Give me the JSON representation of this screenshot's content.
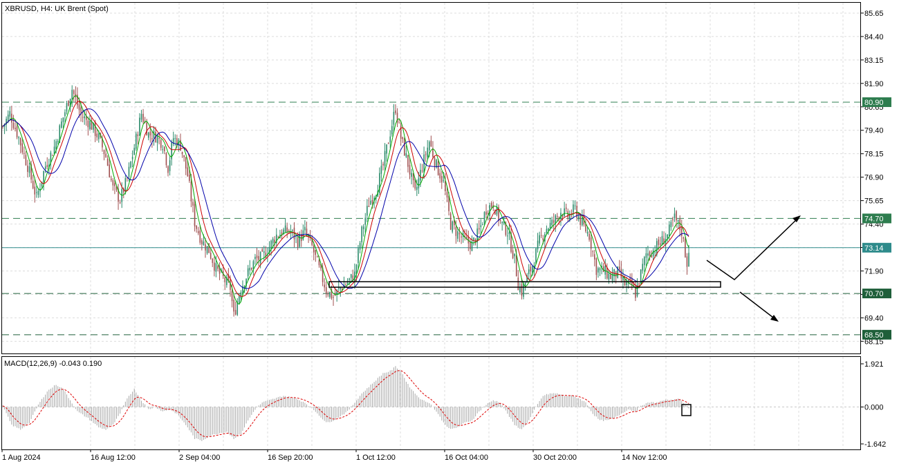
{
  "chart_data": [
    {
      "type": "candlestick",
      "title": "XBRUSD, H4:  UK Brent (Spot)",
      "ylim": [
        67.5,
        86.2
      ],
      "y_ticks": [
        "85.65",
        "84.40",
        "83.15",
        "81.90",
        "80.65",
        "79.40",
        "78.15",
        "76.90",
        "75.65",
        "74.40",
        "73.15",
        "71.90",
        "70.65",
        "69.40",
        "68.15"
      ],
      "x_ticks": [
        "1 Aug 2024",
        "16 Aug 12:00",
        "2 Sep 04:00",
        "16 Sep 20:00",
        "1 Oct 12:00",
        "16 Oct 04:00",
        "30 Oct 20:00",
        "14 Nov 12:00"
      ],
      "current_price": {
        "label": "73.14",
        "value": 73.14,
        "color": "#2e8b8b"
      },
      "levels": [
        {
          "label": "80.90",
          "value": 80.9,
          "color": "#2e7d4f"
        },
        {
          "label": "74.70",
          "value": 74.7,
          "color": "#2e7d4f"
        },
        {
          "label": "70.70",
          "value": 70.7,
          "color": "#1f5f3a"
        },
        {
          "label": "68.50",
          "value": 68.5,
          "color": "#1f5f3a"
        }
      ],
      "moving_averages": [
        {
          "color": "#00aa00"
        },
        {
          "color": "#cc0000"
        },
        {
          "color": "#0000aa"
        }
      ],
      "candle_colors": {
        "up": "#2a8a6a",
        "down": "#a05050"
      },
      "price_path": [
        [
          0,
          79.6
        ],
        [
          4,
          80.3
        ],
        [
          9,
          79.0
        ],
        [
          14,
          77.5
        ],
        [
          19,
          75.8
        ],
        [
          24,
          77.5
        ],
        [
          29,
          78.5
        ],
        [
          34,
          80.1
        ],
        [
          39,
          81.6
        ],
        [
          44,
          80.2
        ],
        [
          49,
          79.8
        ],
        [
          54,
          79.0
        ],
        [
          58,
          78.0
        ],
        [
          62,
          76.3
        ],
        [
          66,
          75.7
        ],
        [
          70,
          76.8
        ],
        [
          74,
          78.5
        ],
        [
          78,
          80.3
        ],
        [
          82,
          79.2
        ],
        [
          86,
          79.1
        ],
        [
          90,
          78.7
        ],
        [
          93,
          77.4
        ],
        [
          96,
          79.0
        ],
        [
          100,
          78.6
        ],
        [
          104,
          77.0
        ],
        [
          108,
          74.5
        ],
        [
          112,
          73.5
        ],
        [
          116,
          73.0
        ],
        [
          120,
          72.0
        ],
        [
          124,
          71.5
        ],
        [
          128,
          71.0
        ],
        [
          130,
          69.5
        ],
        [
          132,
          70.3
        ],
        [
          134,
          71.0
        ],
        [
          138,
          71.8
        ],
        [
          142,
          72.5
        ],
        [
          146,
          72.6
        ],
        [
          150,
          73.2
        ],
        [
          154,
          73.8
        ],
        [
          158,
          74.0
        ],
        [
          162,
          74.0
        ],
        [
          166,
          73.5
        ],
        [
          170,
          74.0
        ],
        [
          174,
          73.2
        ],
        [
          178,
          72.0
        ],
        [
          182,
          70.9
        ],
        [
          186,
          70.5
        ],
        [
          190,
          71.0
        ],
        [
          194,
          71.3
        ],
        [
          198,
          71.7
        ],
        [
          202,
          74.0
        ],
        [
          206,
          75.5
        ],
        [
          210,
          76.2
        ],
        [
          214,
          77.5
        ],
        [
          218,
          79.3
        ],
        [
          221,
          80.6
        ],
        [
          224,
          79.0
        ],
        [
          228,
          77.6
        ],
        [
          232,
          76.0
        ],
        [
          236,
          77.5
        ],
        [
          240,
          78.8
        ],
        [
          244,
          77.5
        ],
        [
          248,
          76.6
        ],
        [
          252,
          74.4
        ],
        [
          256,
          73.9
        ],
        [
          260,
          73.5
        ],
        [
          264,
          73.3
        ],
        [
          268,
          74.0
        ],
        [
          272,
          75.2
        ],
        [
          276,
          75.5
        ],
        [
          280,
          74.5
        ],
        [
          284,
          74.0
        ],
        [
          288,
          72.5
        ],
        [
          290,
          71.2
        ],
        [
          292,
          70.8
        ],
        [
          294,
          71.3
        ],
        [
          298,
          72.2
        ],
        [
          302,
          73.5
        ],
        [
          306,
          74.2
        ],
        [
          310,
          74.5
        ],
        [
          314,
          75.1
        ],
        [
          318,
          74.8
        ],
        [
          322,
          75.2
        ],
        [
          326,
          74.4
        ],
        [
          330,
          73.8
        ],
        [
          334,
          72.0
        ],
        [
          338,
          71.9
        ],
        [
          342,
          71.6
        ],
        [
          346,
          71.8
        ],
        [
          350,
          71.2
        ],
        [
          354,
          71.1
        ],
        [
          356,
          70.7
        ],
        [
          358,
          71.4
        ],
        [
          362,
          72.8
        ],
        [
          366,
          73.0
        ],
        [
          370,
          73.4
        ],
        [
          374,
          73.8
        ],
        [
          378,
          74.7
        ],
        [
          382,
          74.0
        ],
        [
          385,
          72.3
        ],
        [
          386,
          73.14
        ]
      ]
    },
    {
      "type": "histogram",
      "title": "MACD(12,26,9) -0.043 0.190",
      "ylim": [
        -1.642,
        1.921
      ],
      "y_ticks": [
        "1.921",
        "0.000",
        "-1.642"
      ],
      "histogram_color": "#a8a8a8",
      "signal_color": "#dd0000",
      "macd_path": [
        [
          0,
          0.05
        ],
        [
          5,
          -0.8
        ],
        [
          10,
          -1.0
        ],
        [
          15,
          -0.7
        ],
        [
          20,
          0.1
        ],
        [
          25,
          0.7
        ],
        [
          30,
          1.0
        ],
        [
          34,
          0.8
        ],
        [
          38,
          0.3
        ],
        [
          42,
          -0.2
        ],
        [
          48,
          -0.5
        ],
        [
          54,
          -0.9
        ],
        [
          58,
          -1.0
        ],
        [
          62,
          -0.8
        ],
        [
          66,
          -0.3
        ],
        [
          70,
          0.4
        ],
        [
          74,
          0.8
        ],
        [
          78,
          0.3
        ],
        [
          82,
          -0.1
        ],
        [
          86,
          0.0
        ],
        [
          90,
          -0.2
        ],
        [
          94,
          -0.1
        ],
        [
          98,
          -0.3
        ],
        [
          104,
          -0.9
        ],
        [
          108,
          -1.4
        ],
        [
          112,
          -1.5
        ],
        [
          116,
          -1.3
        ],
        [
          120,
          -1.2
        ],
        [
          126,
          -1.1
        ],
        [
          130,
          -1.4
        ],
        [
          134,
          -1.2
        ],
        [
          138,
          -0.6
        ],
        [
          142,
          -0.1
        ],
        [
          146,
          0.2
        ],
        [
          150,
          0.3
        ],
        [
          154,
          0.4
        ],
        [
          158,
          0.5
        ],
        [
          164,
          0.4
        ],
        [
          170,
          0.2
        ],
        [
          176,
          -0.2
        ],
        [
          182,
          -0.7
        ],
        [
          186,
          -0.6
        ],
        [
          190,
          -0.4
        ],
        [
          194,
          -0.2
        ],
        [
          198,
          0.2
        ],
        [
          202,
          0.6
        ],
        [
          206,
          0.9
        ],
        [
          210,
          1.2
        ],
        [
          214,
          1.5
        ],
        [
          218,
          1.6
        ],
        [
          221,
          1.8
        ],
        [
          224,
          1.6
        ],
        [
          228,
          1.0
        ],
        [
          232,
          0.6
        ],
        [
          236,
          0.3
        ],
        [
          240,
          0.2
        ],
        [
          244,
          -0.2
        ],
        [
          248,
          -0.7
        ],
        [
          252,
          -1.0
        ],
        [
          256,
          -0.9
        ],
        [
          260,
          -0.7
        ],
        [
          264,
          -0.6
        ],
        [
          268,
          -0.2
        ],
        [
          272,
          0.1
        ],
        [
          276,
          0.3
        ],
        [
          280,
          0.2
        ],
        [
          284,
          -0.3
        ],
        [
          288,
          -0.8
        ],
        [
          292,
          -1.0
        ],
        [
          296,
          -0.6
        ],
        [
          300,
          0.0
        ],
        [
          304,
          0.5
        ],
        [
          308,
          0.6
        ],
        [
          312,
          0.6
        ],
        [
          316,
          0.5
        ],
        [
          320,
          0.5
        ],
        [
          324,
          0.4
        ],
        [
          328,
          0.2
        ],
        [
          332,
          -0.3
        ],
        [
          336,
          -0.6
        ],
        [
          340,
          -0.6
        ],
        [
          344,
          -0.5
        ],
        [
          348,
          -0.3
        ],
        [
          352,
          -0.1
        ],
        [
          356,
          -0.2
        ],
        [
          360,
          0.1
        ],
        [
          364,
          0.2
        ],
        [
          368,
          0.2
        ],
        [
          372,
          0.3
        ],
        [
          376,
          0.3
        ],
        [
          380,
          0.4
        ],
        [
          384,
          0.1
        ],
        [
          386,
          -0.043
        ]
      ]
    }
  ]
}
